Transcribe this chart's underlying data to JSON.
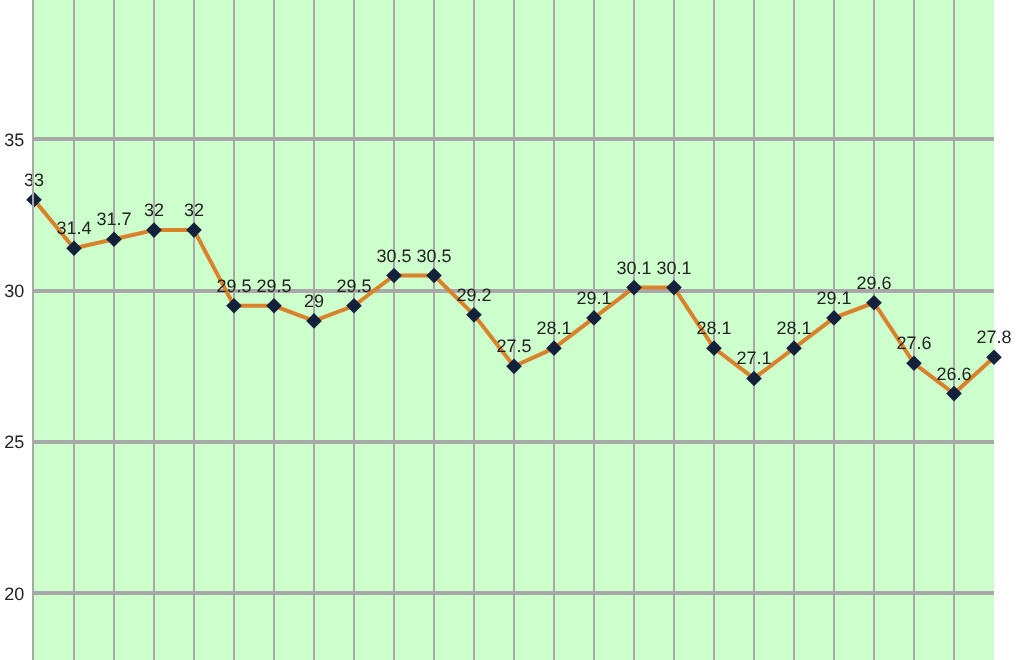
{
  "chart_data": {
    "type": "line",
    "categories": [
      null,
      null,
      null,
      null,
      null,
      null,
      null,
      null,
      null,
      null,
      null,
      null,
      null,
      null,
      null,
      null,
      null,
      null,
      null,
      null,
      null,
      null,
      null,
      null,
      null
    ],
    "series": [
      {
        "color": "#d9822b",
        "values": [
          33,
          31.4,
          31.7,
          32,
          32,
          29.5,
          29.5,
          29,
          29.5,
          30.5,
          30.5,
          29.2,
          27.5,
          28.1,
          29.1,
          30.1,
          30.1,
          28.1,
          27.1,
          28.1,
          29.1,
          29.6,
          27.6,
          26.6,
          27.8
        ]
      }
    ],
    "ylim": [
      17.8,
      39.6
    ],
    "yticks": [
      20,
      25,
      30,
      35
    ],
    "grid": true,
    "tick_labels": "y",
    "marker": "diamond",
    "line_style": "solid",
    "data_labels": true
  }
}
